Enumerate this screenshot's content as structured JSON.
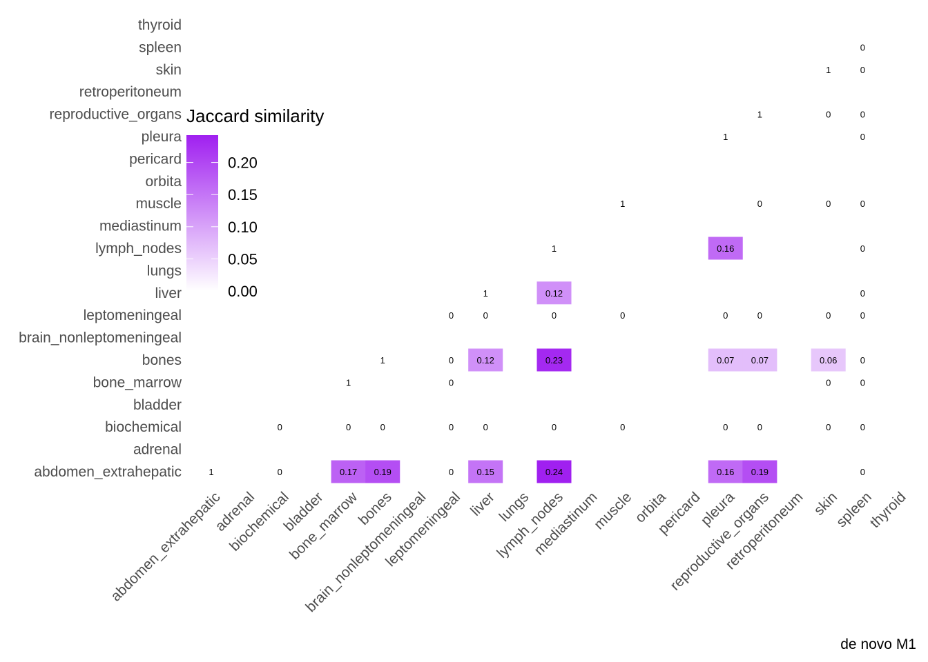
{
  "chart_data": {
    "type": "heatmap",
    "title": "",
    "xlabel": "",
    "ylabel": "",
    "caption": "de novo M1",
    "categories": [
      "abdomen_extrahepatic",
      "adrenal",
      "biochemical",
      "bladder",
      "bone_marrow",
      "bones",
      "brain_nonleptomeningeal",
      "leptomeningeal",
      "liver",
      "lungs",
      "lymph_nodes",
      "mediastinum",
      "muscle",
      "orbita",
      "pericard",
      "pleura",
      "reproductive_organs",
      "retroperitoneum",
      "skin",
      "spleen",
      "thyroid"
    ],
    "legend": {
      "title": "Jaccard similarity",
      "placement": "top-left",
      "range": [
        0,
        0.24
      ],
      "ticks": [
        "0.00",
        "0.05",
        "0.10",
        "0.15",
        "0.20"
      ],
      "tick_values": [
        0,
        0.05,
        0.1,
        0.15,
        0.2
      ],
      "color_low": "#ffffff",
      "color_high": "#a020f0"
    },
    "cells": [
      {
        "row": "abdomen_extrahepatic",
        "col": "abdomen_extrahepatic",
        "value": 1,
        "label": "1",
        "fill": false
      },
      {
        "row": "abdomen_extrahepatic",
        "col": "biochemical",
        "value": 0,
        "label": "0",
        "fill": false
      },
      {
        "row": "abdomen_extrahepatic",
        "col": "bone_marrow",
        "value": 0.17,
        "label": "0.17",
        "fill": true
      },
      {
        "row": "abdomen_extrahepatic",
        "col": "bones",
        "value": 0.19,
        "label": "0.19",
        "fill": true
      },
      {
        "row": "abdomen_extrahepatic",
        "col": "leptomeningeal",
        "value": 0,
        "label": "0",
        "fill": false
      },
      {
        "row": "abdomen_extrahepatic",
        "col": "liver",
        "value": 0.15,
        "label": "0.15",
        "fill": true
      },
      {
        "row": "abdomen_extrahepatic",
        "col": "lymph_nodes",
        "value": 0.24,
        "label": "0.24",
        "fill": true
      },
      {
        "row": "abdomen_extrahepatic",
        "col": "pleura",
        "value": 0.16,
        "label": "0.16",
        "fill": true
      },
      {
        "row": "abdomen_extrahepatic",
        "col": "reproductive_organs",
        "value": 0.19,
        "label": "0.19",
        "fill": true
      },
      {
        "row": "abdomen_extrahepatic",
        "col": "spleen",
        "value": 0,
        "label": "0",
        "fill": false
      },
      {
        "row": "biochemical",
        "col": "biochemical",
        "value": 0,
        "label": "0",
        "fill": false
      },
      {
        "row": "biochemical",
        "col": "bone_marrow",
        "value": 0,
        "label": "0",
        "fill": false
      },
      {
        "row": "biochemical",
        "col": "bones",
        "value": 0,
        "label": "0",
        "fill": false
      },
      {
        "row": "biochemical",
        "col": "leptomeningeal",
        "value": 0,
        "label": "0",
        "fill": false
      },
      {
        "row": "biochemical",
        "col": "liver",
        "value": 0,
        "label": "0",
        "fill": false
      },
      {
        "row": "biochemical",
        "col": "lymph_nodes",
        "value": 0,
        "label": "0",
        "fill": false
      },
      {
        "row": "biochemical",
        "col": "muscle",
        "value": 0,
        "label": "0",
        "fill": false
      },
      {
        "row": "biochemical",
        "col": "pleura",
        "value": 0,
        "label": "0",
        "fill": false
      },
      {
        "row": "biochemical",
        "col": "reproductive_organs",
        "value": 0,
        "label": "0",
        "fill": false
      },
      {
        "row": "biochemical",
        "col": "skin",
        "value": 0,
        "label": "0",
        "fill": false
      },
      {
        "row": "biochemical",
        "col": "spleen",
        "value": 0,
        "label": "0",
        "fill": false
      },
      {
        "row": "bone_marrow",
        "col": "bone_marrow",
        "value": 1,
        "label": "1",
        "fill": false
      },
      {
        "row": "bone_marrow",
        "col": "leptomeningeal",
        "value": 0,
        "label": "0",
        "fill": false
      },
      {
        "row": "bone_marrow",
        "col": "skin",
        "value": 0,
        "label": "0",
        "fill": false
      },
      {
        "row": "bone_marrow",
        "col": "spleen",
        "value": 0,
        "label": "0",
        "fill": false
      },
      {
        "row": "bones",
        "col": "bones",
        "value": 1,
        "label": "1",
        "fill": false
      },
      {
        "row": "bones",
        "col": "leptomeningeal",
        "value": 0,
        "label": "0",
        "fill": false
      },
      {
        "row": "bones",
        "col": "liver",
        "value": 0.12,
        "label": "0.12",
        "fill": true
      },
      {
        "row": "bones",
        "col": "lymph_nodes",
        "value": 0.23,
        "label": "0.23",
        "fill": true
      },
      {
        "row": "bones",
        "col": "pleura",
        "value": 0.07,
        "label": "0.07",
        "fill": true
      },
      {
        "row": "bones",
        "col": "reproductive_organs",
        "value": 0.07,
        "label": "0.07",
        "fill": true
      },
      {
        "row": "bones",
        "col": "skin",
        "value": 0.06,
        "label": "0.06",
        "fill": true
      },
      {
        "row": "bones",
        "col": "spleen",
        "value": 0,
        "label": "0",
        "fill": false
      },
      {
        "row": "leptomeningeal",
        "col": "leptomeningeal",
        "value": 0,
        "label": "0",
        "fill": false
      },
      {
        "row": "leptomeningeal",
        "col": "liver",
        "value": 0,
        "label": "0",
        "fill": false
      },
      {
        "row": "leptomeningeal",
        "col": "lymph_nodes",
        "value": 0,
        "label": "0",
        "fill": false
      },
      {
        "row": "leptomeningeal",
        "col": "muscle",
        "value": 0,
        "label": "0",
        "fill": false
      },
      {
        "row": "leptomeningeal",
        "col": "pleura",
        "value": 0,
        "label": "0",
        "fill": false
      },
      {
        "row": "leptomeningeal",
        "col": "reproductive_organs",
        "value": 0,
        "label": "0",
        "fill": false
      },
      {
        "row": "leptomeningeal",
        "col": "skin",
        "value": 0,
        "label": "0",
        "fill": false
      },
      {
        "row": "leptomeningeal",
        "col": "spleen",
        "value": 0,
        "label": "0",
        "fill": false
      },
      {
        "row": "liver",
        "col": "liver",
        "value": 1,
        "label": "1",
        "fill": false
      },
      {
        "row": "liver",
        "col": "lymph_nodes",
        "value": 0.12,
        "label": "0.12",
        "fill": true
      },
      {
        "row": "liver",
        "col": "spleen",
        "value": 0,
        "label": "0",
        "fill": false
      },
      {
        "row": "lymph_nodes",
        "col": "lymph_nodes",
        "value": 1,
        "label": "1",
        "fill": false
      },
      {
        "row": "lymph_nodes",
        "col": "pleura",
        "value": 0.16,
        "label": "0.16",
        "fill": true
      },
      {
        "row": "lymph_nodes",
        "col": "spleen",
        "value": 0,
        "label": "0",
        "fill": false
      },
      {
        "row": "muscle",
        "col": "muscle",
        "value": 1,
        "label": "1",
        "fill": false
      },
      {
        "row": "muscle",
        "col": "reproductive_organs",
        "value": 0,
        "label": "0",
        "fill": false
      },
      {
        "row": "muscle",
        "col": "skin",
        "value": 0,
        "label": "0",
        "fill": false
      },
      {
        "row": "muscle",
        "col": "spleen",
        "value": 0,
        "label": "0",
        "fill": false
      },
      {
        "row": "pleura",
        "col": "pleura",
        "value": 1,
        "label": "1",
        "fill": false
      },
      {
        "row": "pleura",
        "col": "spleen",
        "value": 0,
        "label": "0",
        "fill": false
      },
      {
        "row": "reproductive_organs",
        "col": "reproductive_organs",
        "value": 1,
        "label": "1",
        "fill": false
      },
      {
        "row": "reproductive_organs",
        "col": "skin",
        "value": 0,
        "label": "0",
        "fill": false
      },
      {
        "row": "reproductive_organs",
        "col": "spleen",
        "value": 0,
        "label": "0",
        "fill": false
      },
      {
        "row": "skin",
        "col": "skin",
        "value": 1,
        "label": "1",
        "fill": false
      },
      {
        "row": "skin",
        "col": "spleen",
        "value": 0,
        "label": "0",
        "fill": false
      },
      {
        "row": "spleen",
        "col": "spleen",
        "value": 0,
        "label": "0",
        "fill": false
      }
    ]
  }
}
